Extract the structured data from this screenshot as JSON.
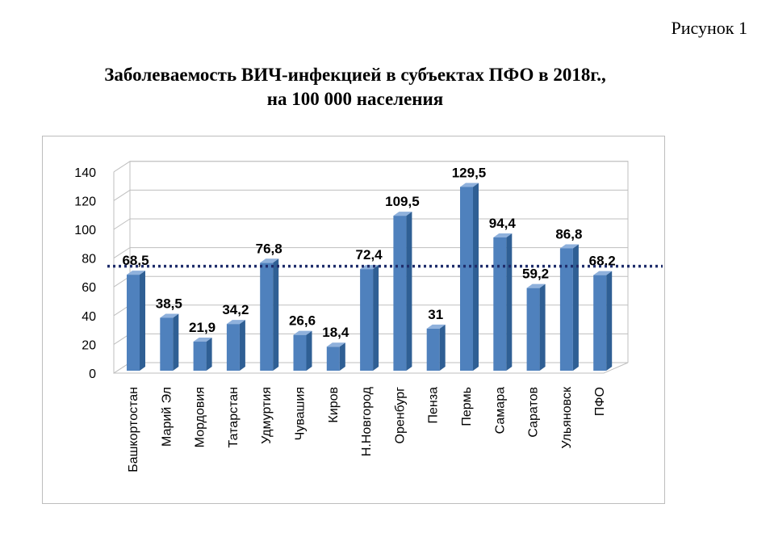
{
  "figure_label": "Рисунок 1",
  "title_line1": "Заболеваемость ВИЧ-инфекцией в субъектах ПФО в 2018г.,",
  "title_line2": "на 100 000 населения",
  "colors": {
    "bar_front": "#4f81bd",
    "bar_side": "#2f5f94",
    "bar_top": "#8fb1dc",
    "avg_line": "#1f2d6b",
    "grid": "#bfbfbf"
  },
  "chart_data": {
    "type": "bar",
    "title": "Заболеваемость ВИЧ-инфекцией в субъектах ПФО в 2018г., на 100 000 населения",
    "categories": [
      "Башкортостан",
      "Марий Эл",
      "Мордовия",
      "Татарстан",
      "Удмуртия",
      "Чувашия",
      "Киров",
      "Н.Новгород",
      "Оренбург",
      "Пенза",
      "Пермь",
      "Самара",
      "Саратов",
      "Ульяновск",
      "ПФО"
    ],
    "values": [
      68.5,
      38.5,
      21.9,
      34.2,
      76.8,
      26.6,
      18.4,
      72.4,
      109.5,
      31,
      129.5,
      94.4,
      59.2,
      86.8,
      68.2
    ],
    "labels": [
      "68,5",
      "38,5",
      "21,9",
      "34,2",
      "76,8",
      "26,6",
      "18,4",
      "72,4",
      "109,5",
      "31",
      "129,5",
      "94,4",
      "59,2",
      "86,8",
      "68,2"
    ],
    "y_ticks": [
      "0",
      "20",
      "40",
      "60",
      "80",
      "100",
      "120",
      "140"
    ],
    "ylim": [
      0,
      140
    ],
    "reference_line": 68.2,
    "grid": true,
    "three_d": true
  }
}
